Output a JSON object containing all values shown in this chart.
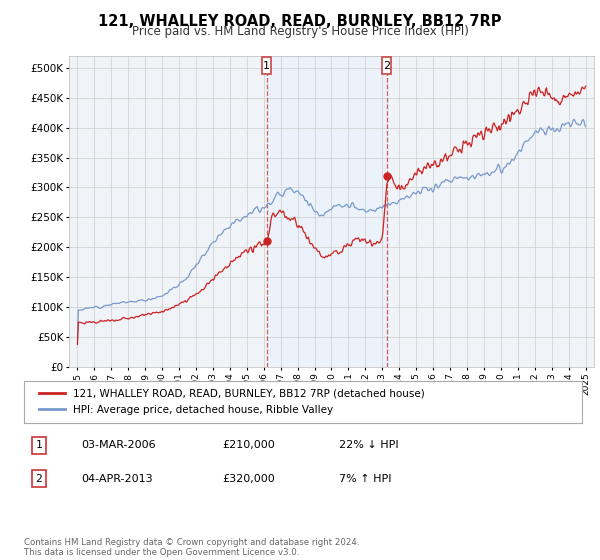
{
  "title": "121, WHALLEY ROAD, READ, BURNLEY, BB12 7RP",
  "subtitle": "Price paid vs. HM Land Registry's House Price Index (HPI)",
  "title_fontsize": 10.5,
  "subtitle_fontsize": 8.5,
  "background_color": "#ffffff",
  "plot_bg_color": "#f0f4f8",
  "grid_color": "#cccccc",
  "hpi_color": "#7799cc",
  "price_color": "#cc2222",
  "shade_color": "#ddeeff",
  "marker1_x": 2006.17,
  "marker1_y": 210000,
  "marker2_x": 2013.25,
  "marker2_y": 320000,
  "legend_entry1": "121, WHALLEY ROAD, READ, BURNLEY, BB12 7RP (detached house)",
  "legend_entry2": "HPI: Average price, detached house, Ribble Valley",
  "footnote": "Contains HM Land Registry data © Crown copyright and database right 2024.\nThis data is licensed under the Open Government Licence v3.0.",
  "table_rows": [
    {
      "num": "1",
      "date": "03-MAR-2006",
      "price": "£210,000",
      "hpi": "22% ↓ HPI"
    },
    {
      "num": "2",
      "date": "04-APR-2013",
      "price": "£320,000",
      "hpi": "7% ↑ HPI"
    }
  ],
  "ylim": [
    0,
    520000
  ],
  "yticks": [
    0,
    50000,
    100000,
    150000,
    200000,
    250000,
    300000,
    350000,
    400000,
    450000,
    500000
  ],
  "xlim_start": 1994.5,
  "xlim_end": 2025.5,
  "xticks": [
    1995,
    1996,
    1997,
    1998,
    1999,
    2000,
    2001,
    2002,
    2003,
    2004,
    2005,
    2006,
    2007,
    2008,
    2009,
    2010,
    2011,
    2012,
    2013,
    2014,
    2015,
    2016,
    2017,
    2018,
    2019,
    2020,
    2021,
    2022,
    2023,
    2024,
    2025
  ]
}
